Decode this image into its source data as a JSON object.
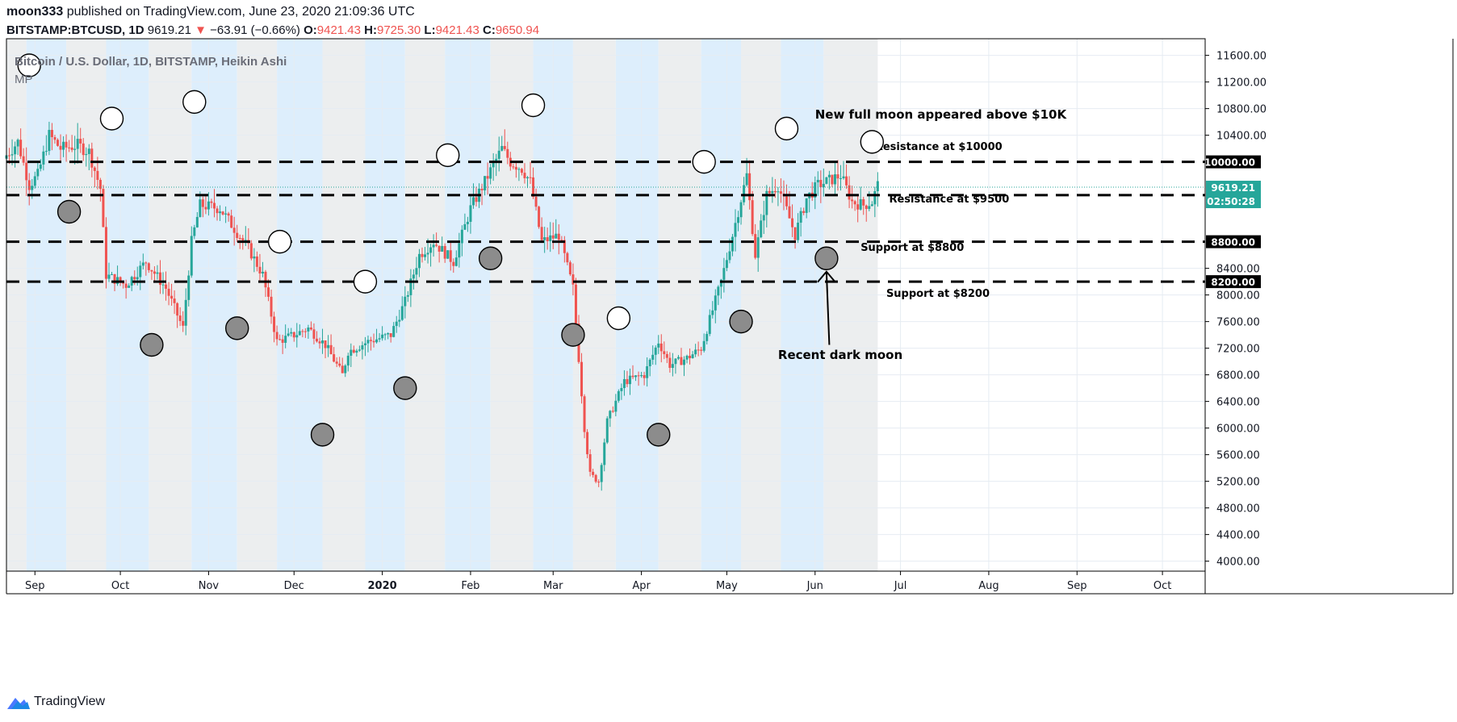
{
  "header": {
    "author": "moon333",
    "published_text": "published on TradingView.com, June 23, 2020 21:09:36 UTC",
    "symbol": "BITSTAMP:BTCUSD, 1D",
    "last": "9619.21",
    "change": "−63.91 (−0.66%)",
    "o_label": "O:",
    "o": "9421.43",
    "h_label": "H:",
    "h": "9725.30",
    "l_label": "L:",
    "l": "9421.43",
    "c_label": "C:",
    "c": "9650.94"
  },
  "footer": {
    "brand": "TradingView",
    "icon": "tradingview-logo-icon"
  },
  "colors": {
    "up": "#26a69a",
    "down": "#ef5350",
    "blue_band": "#ddeefc",
    "grey_band": "#eceeef",
    "price_tag": "#26a69a",
    "level_tag": "#000000"
  },
  "chart_data": {
    "type": "candlestick",
    "title": "Bitcoin / U.S. Dollar, 1D, BITSTAMP, Heikin Ashi",
    "indicator": "MP",
    "ylim": [
      3850,
      11850
    ],
    "y_ticks": [
      4000,
      4400,
      4800,
      5200,
      5600,
      6000,
      6400,
      6800,
      7200,
      7600,
      8000,
      8400,
      10400,
      10800,
      11200,
      11600
    ],
    "x_range": [
      "2019-08-22",
      "2020-10-16"
    ],
    "x_ticks": [
      {
        "label": "Sep",
        "date": "2019-09-01"
      },
      {
        "label": "Oct",
        "date": "2019-10-01"
      },
      {
        "label": "Nov",
        "date": "2019-11-01"
      },
      {
        "label": "Dec",
        "date": "2019-12-01"
      },
      {
        "label": "2020",
        "date": "2020-01-01"
      },
      {
        "label": "Feb",
        "date": "2020-02-01"
      },
      {
        "label": "Mar",
        "date": "2020-03-01"
      },
      {
        "label": "Apr",
        "date": "2020-04-01"
      },
      {
        "label": "May",
        "date": "2020-05-01"
      },
      {
        "label": "Jun",
        "date": "2020-06-01"
      },
      {
        "label": "Jul",
        "date": "2020-07-01"
      },
      {
        "label": "Aug",
        "date": "2020-08-01"
      },
      {
        "label": "Sep",
        "date": "2020-09-01"
      },
      {
        "label": "Oct",
        "date": "2020-10-01"
      }
    ],
    "price_path": [
      [
        "2019-08-22",
        10100
      ],
      [
        "2019-08-26",
        10300
      ],
      [
        "2019-08-30",
        9650
      ],
      [
        "2019-09-02",
        9800
      ],
      [
        "2019-09-06",
        10400
      ],
      [
        "2019-09-10",
        10200
      ],
      [
        "2019-09-16",
        10250
      ],
      [
        "2019-09-20",
        10150
      ],
      [
        "2019-09-24",
        9600
      ],
      [
        "2019-09-26",
        8300
      ],
      [
        "2019-10-03",
        8150
      ],
      [
        "2019-10-10",
        8500
      ],
      [
        "2019-10-17",
        8100
      ],
      [
        "2019-10-23",
        7500
      ],
      [
        "2019-10-26",
        8800
      ],
      [
        "2019-10-29",
        9350
      ],
      [
        "2019-11-05",
        9300
      ],
      [
        "2019-11-10",
        9000
      ],
      [
        "2019-11-15",
        8700
      ],
      [
        "2019-11-20",
        8300
      ],
      [
        "2019-11-25",
        7300
      ],
      [
        "2019-12-01",
        7400
      ],
      [
        "2019-12-06",
        7500
      ],
      [
        "2019-12-12",
        7250
      ],
      [
        "2019-12-18",
        6800
      ],
      [
        "2019-12-20",
        7150
      ],
      [
        "2019-12-27",
        7300
      ],
      [
        "2020-01-04",
        7400
      ],
      [
        "2020-01-09",
        7900
      ],
      [
        "2020-01-14",
        8600
      ],
      [
        "2020-01-19",
        8800
      ],
      [
        "2020-01-26",
        8500
      ],
      [
        "2020-02-01",
        9300
      ],
      [
        "2020-02-06",
        9700
      ],
      [
        "2020-02-12",
        10200
      ],
      [
        "2020-02-15",
        10000
      ],
      [
        "2020-02-19",
        9900
      ],
      [
        "2020-02-22",
        9700
      ],
      [
        "2020-02-26",
        8800
      ],
      [
        "2020-03-03",
        8900
      ],
      [
        "2020-03-08",
        8100
      ],
      [
        "2020-03-12",
        6000
      ],
      [
        "2020-03-14",
        5300
      ],
      [
        "2020-03-17",
        5200
      ],
      [
        "2020-03-20",
        6100
      ],
      [
        "2020-03-26",
        6700
      ],
      [
        "2020-04-02",
        6800
      ],
      [
        "2020-04-07",
        7300
      ],
      [
        "2020-04-11",
        6950
      ],
      [
        "2020-04-17",
        7050
      ],
      [
        "2020-04-22",
        7200
      ],
      [
        "2020-04-29",
        8200
      ],
      [
        "2020-05-03",
        8900
      ],
      [
        "2020-05-08",
        9800
      ],
      [
        "2020-05-11",
        8600
      ],
      [
        "2020-05-15",
        9500
      ],
      [
        "2020-05-19",
        9650
      ],
      [
        "2020-05-25",
        8900
      ],
      [
        "2020-05-29",
        9450
      ],
      [
        "2020-06-02",
        9650
      ],
      [
        "2020-06-05",
        9700
      ],
      [
        "2020-06-10",
        9800
      ],
      [
        "2020-06-14",
        9400
      ],
      [
        "2020-06-18",
        9350
      ],
      [
        "2020-06-21",
        9400
      ],
      [
        "2020-06-23",
        9650
      ]
    ],
    "bands": [
      {
        "start": "2019-08-22",
        "end": "2019-08-29",
        "color": "grey"
      },
      {
        "start": "2019-08-29",
        "end": "2019-09-12",
        "color": "blue"
      },
      {
        "start": "2019-09-12",
        "end": "2019-09-26",
        "color": "grey"
      },
      {
        "start": "2019-09-26",
        "end": "2019-10-11",
        "color": "blue"
      },
      {
        "start": "2019-10-11",
        "end": "2019-10-26",
        "color": "grey"
      },
      {
        "start": "2019-10-26",
        "end": "2019-11-11",
        "color": "blue"
      },
      {
        "start": "2019-11-11",
        "end": "2019-11-25",
        "color": "grey"
      },
      {
        "start": "2019-11-25",
        "end": "2019-12-11",
        "color": "blue"
      },
      {
        "start": "2019-12-11",
        "end": "2019-12-26",
        "color": "grey"
      },
      {
        "start": "2019-12-26",
        "end": "2020-01-09",
        "color": "blue"
      },
      {
        "start": "2020-01-09",
        "end": "2020-01-23",
        "color": "grey"
      },
      {
        "start": "2020-01-23",
        "end": "2020-02-08",
        "color": "blue"
      },
      {
        "start": "2020-02-08",
        "end": "2020-02-23",
        "color": "grey"
      },
      {
        "start": "2020-02-23",
        "end": "2020-03-08",
        "color": "blue"
      },
      {
        "start": "2020-03-08",
        "end": "2020-03-23",
        "color": "grey"
      },
      {
        "start": "2020-03-23",
        "end": "2020-04-07",
        "color": "blue"
      },
      {
        "start": "2020-04-07",
        "end": "2020-04-22",
        "color": "grey"
      },
      {
        "start": "2020-04-22",
        "end": "2020-05-06",
        "color": "blue"
      },
      {
        "start": "2020-05-06",
        "end": "2020-05-20",
        "color": "grey"
      },
      {
        "start": "2020-05-20",
        "end": "2020-06-04",
        "color": "blue"
      },
      {
        "start": "2020-06-04",
        "end": "2020-06-23",
        "color": "grey"
      }
    ],
    "full_moons": [
      {
        "date": "2019-08-30",
        "price": 11450
      },
      {
        "date": "2019-09-28",
        "price": 10650
      },
      {
        "date": "2019-10-27",
        "price": 10900
      },
      {
        "date": "2019-11-26",
        "price": 8800
      },
      {
        "date": "2019-12-26",
        "price": 8200
      },
      {
        "date": "2020-01-24",
        "price": 10100
      },
      {
        "date": "2020-02-23",
        "price": 10850
      },
      {
        "date": "2020-03-24",
        "price": 7650
      },
      {
        "date": "2020-04-23",
        "price": 10000
      },
      {
        "date": "2020-05-22",
        "price": 10500
      },
      {
        "date": "2020-06-21",
        "price": 10300
      }
    ],
    "new_moons": [
      {
        "date": "2019-09-13",
        "price": 9250
      },
      {
        "date": "2019-10-12",
        "price": 7250
      },
      {
        "date": "2019-11-11",
        "price": 7500
      },
      {
        "date": "2019-12-11",
        "price": 5900
      },
      {
        "date": "2020-01-09",
        "price": 6600
      },
      {
        "date": "2020-02-08",
        "price": 8550
      },
      {
        "date": "2020-03-08",
        "price": 7400
      },
      {
        "date": "2020-04-07",
        "price": 5900
      },
      {
        "date": "2020-05-06",
        "price": 7600
      },
      {
        "date": "2020-06-05",
        "price": 8550
      }
    ],
    "levels": [
      {
        "price": 10000,
        "tag": "10000.00",
        "label": "Resistance at $10000",
        "label_price": 10180,
        "label_date": "2020-06-22"
      },
      {
        "price": 9500,
        "tag": "9500.00",
        "label": "Resistance at $9500",
        "label_price": 9390,
        "label_date": "2020-06-27"
      },
      {
        "price": 8800,
        "tag": "8800.00",
        "label": "Support at $8800",
        "label_price": 8660,
        "label_date": "2020-06-17"
      },
      {
        "price": 8200,
        "tag": "8200.00",
        "label": "Support at $8200",
        "label_price": 7970,
        "label_date": "2020-06-26"
      }
    ],
    "current_price": {
      "value": 9619.21,
      "tag": "9619.21",
      "countdown": "02:50:28"
    },
    "annotations": [
      {
        "text": "New full moon appeared above $10K",
        "date": "2020-06-01",
        "price": 10650
      },
      {
        "text": "Recent dark moon",
        "date": "2020-05-19",
        "price": 7040
      }
    ],
    "arrow": {
      "from": {
        "date": "2020-06-06",
        "price": 7250
      },
      "to": {
        "date": "2020-06-05",
        "price": 8350
      }
    }
  }
}
